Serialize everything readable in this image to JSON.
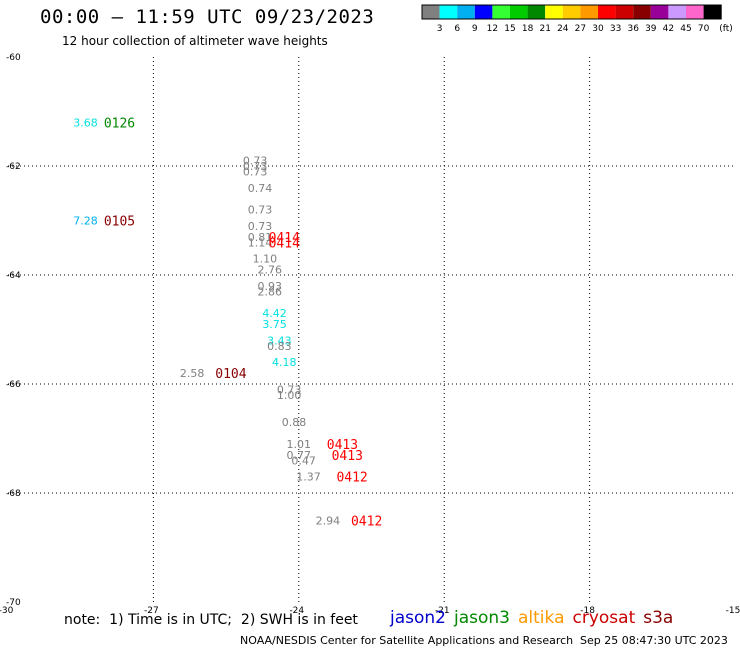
{
  "header": {
    "title": "00:00 – 11:59 UTC 09/23/2023",
    "subtitle": "12 hour collection of altimeter wave heights"
  },
  "color_scale": {
    "colors": [
      "#808080",
      "#00ffff",
      "#00b0f0",
      "#0000ff",
      "#33ff33",
      "#00cc00",
      "#008800",
      "#ffff00",
      "#ffcc00",
      "#ff9900",
      "#ff0000",
      "#cc0000",
      "#880000",
      "#990099",
      "#cc99ff",
      "#ff66cc",
      "#000000"
    ],
    "labels": [
      "3",
      "6",
      "9",
      "12",
      "15",
      "18",
      "21",
      "24",
      "27",
      "30",
      "33",
      "36",
      "39",
      "42",
      "45",
      "70",
      "(ft)"
    ]
  },
  "chart_data": {
    "type": "scatter",
    "title": "12 hour collection of altimeter wave heights",
    "xlim": [
      -30,
      -15
    ],
    "ylim": [
      -70,
      -60
    ],
    "x_ticks": [
      "-30",
      "-27",
      "-24",
      "-21",
      "-18",
      "-15"
    ],
    "y_ticks": [
      "-60",
      "-62",
      "-64",
      "-66",
      "-68",
      "-70"
    ],
    "grid": true,
    "colors": {
      "gray": "#808080",
      "cyan": "#00e0e0",
      "skyblue": "#00b0f0",
      "green": "#008800",
      "darkred": "#880000",
      "red": "#ff0000"
    },
    "swh_labels": [
      {
        "text": "3.68",
        "x": -28.4,
        "y": -61.2,
        "color": "cyan"
      },
      {
        "text": "7.28",
        "x": -28.4,
        "y": -63.0,
        "color": "skyblue"
      },
      {
        "text": "0.73",
        "x": -24.9,
        "y": -61.9,
        "color": "gray"
      },
      {
        "text": "0.73",
        "x": -24.9,
        "y": -62.0,
        "color": "gray"
      },
      {
        "text": "0.73",
        "x": -24.9,
        "y": -62.1,
        "color": "gray"
      },
      {
        "text": "0.74",
        "x": -24.8,
        "y": -62.4,
        "color": "gray"
      },
      {
        "text": "0.73",
        "x": -24.8,
        "y": -62.8,
        "color": "gray"
      },
      {
        "text": "0.73",
        "x": -24.8,
        "y": -63.1,
        "color": "gray"
      },
      {
        "text": "0.81",
        "x": -24.8,
        "y": -63.3,
        "color": "gray"
      },
      {
        "text": "1.14",
        "x": -24.8,
        "y": -63.4,
        "color": "gray"
      },
      {
        "text": "1.10",
        "x": -24.7,
        "y": -63.7,
        "color": "gray"
      },
      {
        "text": "2.76",
        "x": -24.6,
        "y": -63.9,
        "color": "gray"
      },
      {
        "text": "0.93",
        "x": -24.6,
        "y": -64.2,
        "color": "gray"
      },
      {
        "text": "2.86",
        "x": -24.6,
        "y": -64.3,
        "color": "gray"
      },
      {
        "text": "4.42",
        "x": -24.5,
        "y": -64.7,
        "color": "cyan"
      },
      {
        "text": "3.75",
        "x": -24.5,
        "y": -64.9,
        "color": "cyan"
      },
      {
        "text": "3.43",
        "x": -24.4,
        "y": -65.2,
        "color": "cyan"
      },
      {
        "text": "0.83",
        "x": -24.4,
        "y": -65.3,
        "color": "gray"
      },
      {
        "text": "4.18",
        "x": -24.3,
        "y": -65.6,
        "color": "cyan"
      },
      {
        "text": "2.58",
        "x": -26.2,
        "y": -65.8,
        "color": "gray"
      },
      {
        "text": "0.73",
        "x": -24.2,
        "y": -66.1,
        "color": "gray"
      },
      {
        "text": "1.00",
        "x": -24.2,
        "y": -66.2,
        "color": "gray"
      },
      {
        "text": "0.88",
        "x": -24.1,
        "y": -66.7,
        "color": "gray"
      },
      {
        "text": "1.01",
        "x": -24.0,
        "y": -67.1,
        "color": "gray"
      },
      {
        "text": "0.77",
        "x": -24.0,
        "y": -67.3,
        "color": "gray"
      },
      {
        "text": "0.47",
        "x": -23.9,
        "y": -67.4,
        "color": "gray"
      },
      {
        "text": "1.37",
        "x": -23.8,
        "y": -67.7,
        "color": "gray"
      },
      {
        "text": "2.94",
        "x": -23.4,
        "y": -68.5,
        "color": "gray"
      }
    ],
    "pass_labels": [
      {
        "text": "0126",
        "x": -27.7,
        "y": -61.2,
        "color": "green"
      },
      {
        "text": "0105",
        "x": -27.7,
        "y": -63.0,
        "color": "darkred"
      },
      {
        "text": "0414",
        "x": -24.3,
        "y": -63.3,
        "color": "red"
      },
      {
        "text": "0414",
        "x": -24.3,
        "y": -63.4,
        "color": "red"
      },
      {
        "text": "0104",
        "x": -25.4,
        "y": -65.8,
        "color": "darkred"
      },
      {
        "text": "0413",
        "x": -23.1,
        "y": -67.1,
        "color": "red"
      },
      {
        "text": "0413",
        "x": -23.0,
        "y": -67.3,
        "color": "red"
      },
      {
        "text": "0412",
        "x": -22.9,
        "y": -67.7,
        "color": "red"
      },
      {
        "text": "0412",
        "x": -22.6,
        "y": -68.5,
        "color": "red"
      }
    ]
  },
  "footer": {
    "note": "note:  1) Time is in UTC;  2) SWH is in feet",
    "satellites": [
      {
        "name": "jason2",
        "color": "#0000cc"
      },
      {
        "name": "jason3",
        "color": "#008800"
      },
      {
        "name": "altika",
        "color": "#ff9900"
      },
      {
        "name": "cryosat",
        "color": "#cc0000"
      },
      {
        "name": "s3a",
        "color": "#880000"
      }
    ],
    "credit": "NOAA/NESDIS Center for Satellite Applications and Research",
    "timestamp": "Sep 25 08:47:30 UTC 2023"
  }
}
